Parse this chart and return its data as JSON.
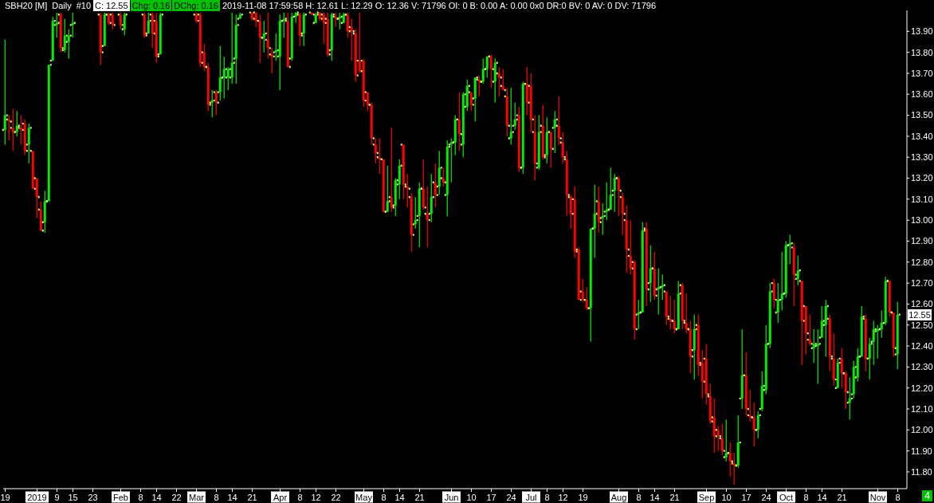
{
  "chart_data": {
    "type": "candlestick",
    "title": "SBH20 [M]",
    "subtitle": "Daily",
    "annotations": [
      "#10",
      "C: 12.55",
      "Chg: 0.16",
      "DChg: 0.16",
      "2019-11-08 17:59:58 H: 12.61 L: 12.29 O: 12.36 V: 71796 OI: 0 B: 0.00 A: 0.00 0x0 DR:0 BV: 0 AV: 0 DV: 71796",
      {
        "text": "12.55",
        "y": 12.55
      },
      "4"
    ],
    "categories": [
      "19",
      null,
      null,
      null,
      null,
      null,
      null,
      null,
      "2019",
      null,
      null,
      null,
      null,
      "9",
      null,
      null,
      null,
      "15",
      null,
      null,
      null,
      null,
      "23",
      null,
      null,
      null,
      null,
      null,
      null,
      "Feb",
      null,
      null,
      null,
      null,
      "8",
      null,
      null,
      null,
      "14",
      null,
      null,
      null,
      null,
      "22",
      null,
      null,
      null,
      null,
      "Mar",
      null,
      null,
      null,
      null,
      "8",
      null,
      null,
      null,
      "14",
      null,
      null,
      null,
      null,
      "21",
      null,
      null,
      null,
      null,
      null,
      null,
      "Apr",
      null,
      null,
      null,
      null,
      "8",
      null,
      null,
      null,
      "12",
      null,
      null,
      null,
      null,
      "22",
      null,
      null,
      null,
      null,
      null,
      null,
      "May",
      null,
      null,
      null,
      null,
      "8",
      null,
      null,
      null,
      "14",
      null,
      null,
      null,
      null,
      "21",
      null,
      null,
      null,
      null,
      null,
      null,
      null,
      "Jun",
      null,
      null,
      null,
      null,
      "10",
      null,
      null,
      null,
      null,
      "17",
      null,
      null,
      null,
      null,
      "24",
      null,
      null,
      null,
      null,
      "Jul",
      null,
      null,
      null,
      "8",
      null,
      null,
      null,
      "12",
      null,
      null,
      null,
      null,
      "19",
      null,
      null,
      null,
      null,
      null,
      null,
      null,
      null,
      "Aug",
      null,
      null,
      null,
      null,
      "8",
      null,
      null,
      null,
      "14",
      null,
      null,
      null,
      null,
      "21",
      null,
      null,
      null,
      null,
      null,
      null,
      null,
      "Sep",
      null,
      null,
      null,
      null,
      "10",
      null,
      null,
      null,
      null,
      "17",
      null,
      null,
      null,
      null,
      "24",
      null,
      null,
      null,
      null,
      "Oct",
      null,
      null,
      null,
      null,
      "8",
      null,
      null,
      null,
      "14",
      null,
      null,
      null,
      null,
      "21",
      null,
      null,
      null,
      null,
      null,
      null,
      null,
      null,
      "Nov",
      null,
      null,
      null,
      null,
      "8"
    ],
    "ohlc": [
      [
        13.43,
        13.86,
        13.36,
        13.5
      ],
      [
        13.48,
        13.5,
        13.38,
        13.47
      ],
      [
        13.44,
        13.53,
        13.33,
        13.42
      ],
      [
        13.42,
        13.52,
        13.4,
        13.45
      ],
      [
        13.44,
        13.5,
        13.36,
        13.43
      ],
      [
        13.46,
        13.48,
        13.31,
        13.33
      ],
      [
        13.36,
        13.46,
        13.27,
        13.44
      ],
      [
        13.33,
        13.33,
        13.15,
        13.15
      ],
      [
        13.2,
        13.2,
        13.01,
        13.11
      ],
      [
        13.05,
        13.09,
        12.95,
        12.95
      ],
      [
        12.99,
        13.14,
        12.94,
        13.09
      ],
      [
        13.09,
        13.74,
        13.09,
        13.74
      ],
      [
        13.76,
        13.97,
        13.76,
        13.95
      ],
      [
        13.93,
        13.99,
        13.87,
        13.94
      ],
      [
        13.98,
        13.99,
        13.8,
        13.82
      ],
      [
        13.81,
        13.96,
        13.8,
        13.88
      ],
      [
        13.85,
        13.91,
        13.77,
        13.88
      ],
      [
        13.93,
        13.99,
        13.87,
        13.94
      ],
      null,
      null,
      null,
      null,
      null,
      null,
      [
        13.98,
        13.99,
        13.74,
        13.8
      ],
      [
        13.83,
        13.99,
        13.83,
        13.98
      ],
      [
        13.98,
        13.99,
        13.93,
        13.94
      ],
      [
        13.98,
        13.99,
        13.91,
        13.93
      ],
      null,
      [
        13.98,
        13.99,
        13.91,
        13.93
      ],
      [
        13.91,
        13.99,
        13.88,
        13.98
      ],
      null,
      null,
      null,
      null,
      [
        13.98,
        13.99,
        13.87,
        13.88
      ],
      [
        13.89,
        13.99,
        13.89,
        13.95
      ],
      [
        13.98,
        13.99,
        13.82,
        13.89
      ],
      [
        13.95,
        13.99,
        13.75,
        13.78
      ],
      [
        13.79,
        13.99,
        13.79,
        13.98
      ],
      null,
      null,
      null,
      null,
      null,
      null,
      null,
      null,
      [
        13.98,
        13.99,
        13.94,
        13.95
      ],
      [
        13.98,
        13.99,
        13.73,
        13.75
      ],
      [
        13.8,
        13.84,
        13.71,
        13.73
      ],
      [
        13.73,
        13.75,
        13.52,
        13.55
      ],
      [
        13.56,
        13.62,
        13.49,
        13.57
      ],
      [
        13.61,
        13.62,
        13.5,
        13.56
      ],
      [
        13.61,
        13.83,
        13.57,
        13.68
      ],
      [
        13.68,
        13.78,
        13.58,
        13.72
      ],
      [
        13.68,
        13.73,
        13.62,
        13.72
      ],
      [
        13.68,
        13.99,
        13.65,
        13.75
      ],
      [
        13.77,
        13.98,
        13.65,
        13.93
      ],
      [
        13.96,
        13.99,
        13.96,
        13.98
      ],
      null,
      null,
      [
        13.99,
        13.99,
        13.95,
        13.96
      ],
      [
        13.99,
        13.99,
        13.92,
        13.95
      ],
      [
        13.95,
        13.98,
        13.75,
        13.87
      ],
      [
        13.87,
        13.95,
        13.8,
        13.89
      ],
      [
        13.86,
        13.99,
        13.77,
        13.82
      ],
      [
        13.79,
        13.82,
        13.7,
        13.78
      ],
      [
        13.8,
        13.89,
        13.76,
        13.81
      ],
      [
        13.78,
        13.98,
        13.62,
        13.95
      ],
      [
        13.95,
        13.99,
        13.87,
        13.96
      ],
      [
        13.95,
        13.99,
        13.73,
        13.73
      ],
      [
        13.77,
        13.99,
        13.76,
        13.97
      ],
      [
        13.97,
        13.99,
        13.94,
        13.99
      ],
      [
        13.98,
        13.99,
        13.83,
        13.88
      ],
      [
        13.89,
        13.99,
        13.83,
        13.98
      ],
      null,
      [
        13.99,
        13.99,
        13.98,
        13.98
      ],
      [
        13.94,
        13.99,
        13.94,
        13.98
      ],
      [
        13.99,
        13.99,
        13.95,
        13.96
      ],
      [
        13.98,
        13.99,
        13.84,
        13.94
      ],
      [
        13.96,
        13.99,
        13.78,
        13.79
      ],
      [
        13.81,
        13.99,
        13.76,
        13.98
      ],
      [
        13.97,
        13.99,
        13.92,
        13.96
      ],
      [
        13.96,
        13.99,
        13.91,
        13.97
      ],
      [
        13.94,
        13.99,
        13.94,
        13.98
      ],
      [
        13.98,
        13.99,
        13.87,
        13.9
      ],
      [
        13.92,
        13.96,
        13.76,
        13.9
      ],
      [
        13.89,
        13.91,
        13.66,
        13.69
      ],
      [
        13.76,
        13.99,
        13.7,
        13.71
      ],
      [
        13.76,
        13.77,
        13.54,
        13.57
      ],
      [
        13.61,
        13.61,
        13.52,
        13.55
      ],
      [
        13.55,
        13.56,
        13.36,
        13.39
      ],
      [
        13.36,
        13.39,
        13.27,
        13.32
      ],
      [
        13.3,
        13.39,
        13.22,
        13.29
      ],
      [
        13.29,
        13.29,
        13.04,
        13.04
      ],
      [
        13.04,
        13.26,
        13.04,
        13.09
      ],
      [
        13.11,
        13.44,
        13.04,
        13.06
      ],
      [
        13.07,
        13.2,
        13.02,
        13.19
      ],
      [
        13.17,
        13.29,
        13.1,
        13.26
      ],
      [
        13.36,
        13.36,
        13.1,
        13.17
      ],
      [
        13.16,
        13.22,
        13.06,
        13.15
      ],
      [
        13.11,
        13.13,
        12.85,
        12.93
      ],
      [
        12.98,
        13.11,
        12.96,
        13
      ],
      [
        13.02,
        13.18,
        12.87,
        13.15
      ],
      [
        13.15,
        13.29,
        13.05,
        13.06
      ],
      [
        13.03,
        13.16,
        12.87,
        13
      ],
      [
        13.03,
        13.22,
        12.99,
        13.11
      ],
      [
        13.18,
        13.27,
        13.06,
        13.12
      ],
      [
        13.16,
        13.33,
        13.12,
        13.25
      ],
      [
        13.2,
        13.25,
        13.16,
        13.18
      ],
      [
        13.12,
        13.38,
        13.02,
        13.35
      ],
      [
        13.36,
        13.39,
        13.18,
        13.37
      ],
      [
        13.37,
        13.5,
        13.31,
        13.48
      ],
      [
        13.48,
        13.61,
        13.33,
        13.41
      ],
      [
        13.36,
        13.61,
        13.3,
        13.6
      ],
      [
        13.54,
        13.67,
        13.52,
        13.64
      ],
      [
        13.61,
        13.61,
        13.52,
        13.55
      ],
      [
        13.58,
        13.68,
        13.47,
        13.68
      ],
      [
        13.67,
        13.69,
        13.59,
        13.66
      ],
      [
        13.66,
        13.77,
        13.65,
        13.72
      ],
      [
        13.72,
        13.78,
        13.68,
        13.78
      ],
      [
        13.78,
        13.79,
        13.63,
        13.72
      ],
      [
        13.66,
        13.77,
        13.56,
        13.75
      ],
      [
        13.7,
        13.73,
        13.59,
        13.68
      ],
      [
        13.64,
        13.72,
        13.62,
        13.62
      ],
      [
        13.59,
        13.63,
        13.4,
        13.45
      ],
      [
        13.39,
        13.63,
        13.36,
        13.42
      ],
      [
        13.45,
        13.56,
        13.43,
        13.48
      ],
      [
        13.5,
        13.54,
        13.23,
        13.25
      ],
      [
        13.25,
        13.66,
        13.22,
        13.65
      ],
      [
        13.65,
        13.73,
        13.5,
        13.56
      ],
      [
        13.64,
        13.7,
        13.42,
        13.48
      ],
      [
        13.42,
        13.5,
        13.19,
        13.27
      ],
      [
        13.25,
        13.5,
        13.24,
        13.42
      ],
      [
        13.45,
        13.55,
        13.29,
        13.3
      ],
      [
        13.31,
        13.49,
        13.27,
        13.42
      ],
      [
        13.42,
        13.42,
        13.25,
        13.34
      ],
      [
        13.44,
        13.52,
        13.32,
        13.48
      ],
      [
        13.45,
        13.59,
        13.36,
        13.39
      ],
      [
        13.37,
        13.42,
        13.27,
        13.3
      ],
      [
        13.29,
        13.33,
        13.02,
        13.12
      ],
      [
        13.11,
        13.12,
        12.96,
        13.03
      ],
      [
        13.1,
        13.16,
        12.82,
        12.85
      ],
      [
        12.86,
        12.87,
        12.62,
        12.62
      ],
      [
        12.66,
        12.72,
        12.61,
        12.62
      ],
      [
        12.62,
        12.68,
        12.57,
        12.58
      ],
      [
        12.58,
        12.96,
        12.42,
        12.96
      ],
      [
        12.96,
        13.17,
        12.82,
        13.03
      ],
      [
        13.09,
        13.16,
        12.94,
        12.99
      ],
      [
        13.01,
        13.08,
        12.93,
        13.02
      ],
      [
        13.04,
        13.18,
        13,
        13.05
      ],
      [
        13.05,
        13.25,
        13.05,
        13.12
      ],
      [
        13.14,
        13.22,
        13.04,
        13.2
      ],
      [
        13.2,
        13.21,
        13.02,
        13.14
      ],
      [
        13.11,
        13.13,
        12.93,
        13.03
      ],
      [
        13,
        13.07,
        12.75,
        12.86
      ],
      [
        12.83,
        13,
        12.74,
        12.77
      ],
      [
        12.8,
        12.81,
        12.43,
        12.48
      ],
      [
        12.55,
        12.62,
        12.48,
        12.56
      ],
      [
        12.56,
        12.99,
        12.56,
        12.95
      ],
      [
        12.96,
        12.99,
        12.59,
        12.67
      ],
      [
        12.7,
        12.88,
        12.61,
        12.77
      ],
      [
        12.77,
        12.85,
        12.62,
        12.64
      ],
      [
        12.67,
        12.77,
        12.55,
        12.68
      ],
      [
        12.68,
        12.74,
        12.62,
        12.69
      ],
      [
        12.66,
        12.66,
        12.5,
        12.54
      ],
      [
        12.53,
        12.64,
        12.48,
        12.52
      ],
      [
        12.52,
        12.62,
        12.46,
        12.48
      ],
      [
        12.48,
        12.71,
        12.48,
        12.65
      ],
      [
        12.69,
        12.7,
        12.48,
        12.52
      ],
      [
        12.51,
        12.65,
        12.46,
        12.48
      ],
      [
        12.48,
        12.52,
        12.27,
        12.35
      ],
      [
        12.38,
        12.55,
        12.24,
        12.48
      ],
      [
        12.5,
        12.55,
        12.26,
        12.31
      ],
      [
        12.32,
        12.38,
        12.15,
        12.23
      ],
      [
        12.34,
        12.41,
        12.12,
        12.17
      ],
      [
        12.16,
        12.22,
        12.03,
        12.04
      ],
      [
        12.06,
        12.15,
        11.89,
        11.97
      ],
      [
        12,
        12.02,
        11.9,
        11.97
      ],
      [
        11.96,
        12.03,
        11.88,
        11.9
      ],
      [
        11.87,
        12.05,
        11.85,
        11.89
      ],
      [
        11.89,
        11.94,
        11.78,
        11.85
      ],
      [
        11.84,
        11.89,
        11.74,
        11.83
      ],
      [
        11.83,
        12.07,
        11.82,
        11.94
      ],
      [
        12.15,
        12.48,
        12.1,
        12.26
      ],
      [
        12.26,
        12.37,
        12.07,
        12.1
      ],
      [
        12.07,
        12.19,
        12.04,
        12.06
      ],
      [
        12.06,
        12.13,
        11.92,
        12
      ],
      [
        12,
        12.09,
        11.96,
        12.07
      ],
      [
        12.1,
        12.28,
        12.09,
        12.21
      ],
      [
        12.19,
        12.5,
        12.17,
        12.41
      ],
      [
        12.41,
        12.7,
        12.39,
        12.66
      ],
      [
        12.7,
        12.72,
        12.58,
        12.62
      ],
      [
        12.56,
        12.7,
        12.51,
        12.62
      ],
      [
        12.62,
        12.85,
        12.57,
        12.65
      ],
      [
        12.65,
        12.9,
        12.63,
        12.88
      ],
      [
        12.88,
        12.93,
        12.79,
        12.89
      ],
      [
        12.87,
        12.89,
        12.59,
        12.74
      ],
      [
        12.72,
        12.83,
        12.69,
        12.76
      ],
      [
        12.71,
        12.71,
        12.31,
        12.52
      ],
      [
        12.59,
        12.59,
        12.36,
        12.46
      ],
      [
        12.43,
        12.55,
        12.4,
        12.41
      ],
      [
        12.39,
        12.48,
        12.32,
        12.41
      ],
      [
        12.4,
        12.48,
        12.22,
        12.41
      ],
      [
        12.44,
        12.59,
        12.44,
        12.52
      ],
      [
        12.5,
        12.62,
        12.35,
        12.59
      ],
      [
        12.53,
        12.55,
        12.28,
        12.35
      ],
      [
        12.34,
        12.46,
        12.21,
        12.24
      ],
      [
        12.2,
        12.34,
        12.2,
        12.32
      ],
      [
        12.34,
        12.39,
        12.2,
        12.27
      ],
      [
        12.27,
        12.28,
        12.1,
        12.18
      ],
      [
        12.13,
        12.25,
        12.05,
        12.15
      ],
      [
        12.17,
        12.33,
        12.15,
        12.3
      ],
      [
        12.25,
        12.39,
        12.23,
        12.35
      ],
      [
        12.35,
        12.59,
        12.35,
        12.54
      ],
      [
        12.53,
        12.55,
        12.28,
        12.34
      ],
      [
        12.34,
        12.44,
        12.24,
        12.41
      ],
      [
        12.42,
        12.52,
        12.31,
        12.48
      ],
      [
        12.47,
        12.5,
        12.34,
        12.48
      ],
      [
        12.48,
        12.57,
        12.44,
        12.51
      ],
      [
        12.51,
        12.73,
        12.5,
        12.71
      ],
      [
        12.71,
        12.71,
        12.54,
        12.56
      ],
      [
        12.56,
        12.56,
        12.35,
        12.39
      ],
      [
        12.36,
        12.61,
        12.29,
        12.55
      ]
    ],
    "colors": [
      "#00ee00",
      "#ff0000",
      "#ff0000",
      "#00ee00",
      "#ff0000",
      "#ff0000",
      "#00ee00",
      "#ff0000",
      "#ff0000",
      "#ff0000",
      "#00ee00",
      "#00ee00",
      "#00ee00",
      "#00ee00",
      "#ff0000",
      "#00ee00",
      "#00ee00",
      "#00ee00",
      null,
      null,
      null,
      null,
      null,
      null,
      "#ff0000",
      "#00ee00",
      "#ff0000",
      "#ff0000",
      null,
      "#ff0000",
      "#00ee00",
      null,
      null,
      null,
      null,
      "#ff0000",
      "#00ee00",
      "#ff0000",
      "#ff0000",
      "#00ee00",
      null,
      null,
      null,
      null,
      null,
      null,
      null,
      null,
      "#ff0000",
      "#ff0000",
      "#ff0000",
      "#ff0000",
      "#00ee00",
      "#ff0000",
      "#00ee00",
      "#00ee00",
      "#00ee00",
      "#00ee00",
      "#00ee00",
      "#00ee00",
      null,
      null,
      "#ff0000",
      "#ff0000",
      "#ff0000",
      "#00ee00",
      "#ff0000",
      "#ff0000",
      "#00ee00",
      "#00ee00",
      "#00ee00",
      "#ff0000",
      "#00ee00",
      "#00ee00",
      "#ff0000",
      "#00ee00",
      null,
      "#ff0000",
      "#00ee00",
      "#ff0000",
      "#ff0000",
      "#ff0000",
      "#00ee00",
      "#ff0000",
      "#00ee00",
      "#00ee00",
      "#ff0000",
      "#ff0000",
      "#ff0000",
      "#ff0000",
      "#ff0000",
      "#ff0000",
      "#ff0000",
      "#ff0000",
      "#ff0000",
      "#ff0000",
      "#00ee00",
      "#ff0000",
      "#00ee00",
      "#00ee00",
      "#ff0000",
      "#ff0000",
      "#ff0000",
      "#00ee00",
      "#00ee00",
      "#ff0000",
      "#ff0000",
      "#00ee00",
      "#ff0000",
      "#00ee00",
      "#ff0000",
      "#00ee00",
      "#00ee00",
      "#00ee00",
      "#ff0000",
      "#00ee00",
      "#00ee00",
      "#ff0000",
      "#00ee00",
      "#ff0000",
      "#00ee00",
      "#00ee00",
      "#ff0000",
      "#00ee00",
      "#ff0000",
      "#ff0000",
      "#ff0000",
      "#00ee00",
      "#00ee00",
      "#ff0000",
      "#00ee00",
      "#ff0000",
      "#ff0000",
      "#ff0000",
      "#00ee00",
      "#ff0000",
      "#00ee00",
      "#ff0000",
      "#00ee00",
      "#ff0000",
      "#ff0000",
      "#ff0000",
      "#ff0000",
      "#ff0000",
      "#ff0000",
      "#ff0000",
      "#ff0000",
      "#00ee00",
      "#00ee00",
      "#ff0000",
      "#00ee00",
      "#00ee00",
      "#00ee00",
      "#00ee00",
      "#ff0000",
      "#ff0000",
      "#ff0000",
      "#ff0000",
      "#ff0000",
      "#00ee00",
      "#00ee00",
      "#ff0000",
      "#00ee00",
      "#ff0000",
      "#00ee00",
      "#00ee00",
      "#ff0000",
      "#ff0000",
      "#ff0000",
      "#00ee00",
      "#ff0000",
      "#ff0000",
      "#ff0000",
      "#00ee00",
      "#ff0000",
      "#ff0000",
      "#ff0000",
      "#ff0000",
      "#ff0000",
      "#ff0000",
      "#ff0000",
      "#00ee00",
      "#ff0000",
      "#ff0000",
      "#00ee00",
      "#00ee00",
      "#ff0000",
      "#ff0000",
      "#ff0000",
      "#00ee00",
      "#00ee00",
      "#00ee00",
      "#00ee00",
      "#ff0000",
      "#00ee00",
      "#00ee00",
      "#00ee00",
      "#00ee00",
      "#ff0000",
      "#00ee00",
      "#ff0000",
      "#ff0000",
      "#ff0000",
      "#00ee00",
      "#00ee00",
      "#00ee00",
      "#00ee00",
      "#ff0000",
      "#ff0000",
      "#00ee00",
      "#ff0000",
      "#ff0000",
      "#00ee00",
      "#00ee00",
      "#00ee00",
      "#00ee00",
      "#ff0000",
      "#00ee00",
      "#00ee00",
      "#00ee00",
      "#00ee00",
      "#00ee00",
      "#ff0000",
      "#ff0000",
      "#00ee00"
    ],
    "ylim": [
      11.72,
      14.0
    ],
    "yticks": [
      {
        "value": 11.8,
        "label": "11.80"
      },
      {
        "value": 11.9,
        "label": "11.90"
      },
      {
        "value": 12,
        "label": "12.00"
      },
      {
        "value": 12.1,
        "label": "12.10"
      },
      {
        "value": 12.2,
        "label": "12.20"
      },
      {
        "value": 12.3,
        "label": "12.30"
      },
      {
        "value": 12.4,
        "label": "12.40"
      },
      {
        "value": 12.5,
        "label": "12.50"
      },
      {
        "value": 12.6,
        "label": "12.60"
      },
      {
        "value": 12.7,
        "label": "12.70"
      },
      {
        "value": 12.8,
        "label": "12.80"
      },
      {
        "value": 12.9,
        "label": "12.90"
      },
      {
        "value": 13,
        "label": "13.00"
      },
      {
        "value": 13.1,
        "label": "13.10"
      },
      {
        "value": 13.2,
        "label": "13.20"
      },
      {
        "value": 13.3,
        "label": "13.30"
      },
      {
        "value": 13.4,
        "label": "13.40"
      },
      {
        "value": 13.5,
        "label": "13.50"
      },
      {
        "value": 13.6,
        "label": "13.60"
      },
      {
        "value": 13.7,
        "label": "13.70"
      },
      {
        "value": 13.8,
        "label": "13.80"
      },
      {
        "value": 13.9,
        "label": "13.90"
      }
    ]
  }
}
